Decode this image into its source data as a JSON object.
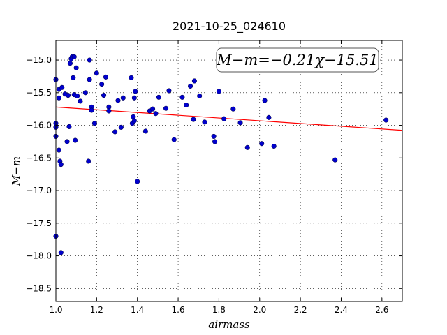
{
  "chart_data": {
    "type": "scatter",
    "title": "2021-10-25_024610",
    "xlabel": "airmass",
    "ylabel": "M−m",
    "xlim": [
      1.0,
      2.7
    ],
    "ylim": [
      -14.7,
      -18.7
    ],
    "y_inverted": true,
    "xticks": [
      1.0,
      1.2,
      1.4,
      1.6,
      1.8,
      2.0,
      2.2,
      2.4,
      2.6
    ],
    "xtick_labels": [
      "1.0",
      "1.2",
      "1.4",
      "1.6",
      "1.8",
      "2.0",
      "2.2",
      "2.4",
      "2.6"
    ],
    "yticks": [
      -15.0,
      -15.5,
      -16.0,
      -16.5,
      -17.0,
      -17.5,
      -18.0,
      -18.5
    ],
    "ytick_labels": [
      "−15.0",
      "−15.5",
      "−16.0",
      "−16.5",
      "−17.0",
      "−17.5",
      "−18.0",
      "−18.5"
    ],
    "grid": true,
    "annotation": "M−m=−0.21χ−15.51",
    "fit": {
      "slope": -0.21,
      "intercept": -15.51,
      "color": "#ff0000"
    },
    "marker_color": "#0000cc",
    "points": [
      [
        1.0,
        -15.3
      ],
      [
        1.0,
        -15.97
      ],
      [
        1.0,
        -16.03
      ],
      [
        1.0,
        -16.17
      ],
      [
        1.0,
        -17.7
      ],
      [
        1.015,
        -15.45
      ],
      [
        1.015,
        -15.58
      ],
      [
        1.015,
        -16.38
      ],
      [
        1.02,
        -16.55
      ],
      [
        1.025,
        -16.6
      ],
      [
        1.025,
        -17.95
      ],
      [
        1.03,
        -15.42
      ],
      [
        1.045,
        -15.52
      ],
      [
        1.055,
        -16.25
      ],
      [
        1.06,
        -15.54
      ],
      [
        1.065,
        -16.02
      ],
      [
        1.07,
        -15.05
      ],
      [
        1.075,
        -14.98
      ],
      [
        1.08,
        -14.95
      ],
      [
        1.09,
        -14.95
      ],
      [
        1.085,
        -15.27
      ],
      [
        1.09,
        -15.53
      ],
      [
        1.095,
        -16.23
      ],
      [
        1.1,
        -15.12
      ],
      [
        1.105,
        -15.55
      ],
      [
        1.12,
        -15.63
      ],
      [
        1.145,
        -15.5
      ],
      [
        1.16,
        -16.55
      ],
      [
        1.165,
        -15.0
      ],
      [
        1.165,
        -15.3
      ],
      [
        1.175,
        -15.72
      ],
      [
        1.175,
        -15.77
      ],
      [
        1.19,
        -15.97
      ],
      [
        1.2,
        -15.2
      ],
      [
        1.225,
        -15.37
      ],
      [
        1.235,
        -15.54
      ],
      [
        1.245,
        -15.26
      ],
      [
        1.26,
        -15.72
      ],
      [
        1.26,
        -15.78
      ],
      [
        1.29,
        -16.1
      ],
      [
        1.305,
        -15.62
      ],
      [
        1.32,
        -16.03
      ],
      [
        1.33,
        -15.58
      ],
      [
        1.37,
        -15.27
      ],
      [
        1.375,
        -15.97
      ],
      [
        1.38,
        -15.87
      ],
      [
        1.385,
        -15.58
      ],
      [
        1.385,
        -15.93
      ],
      [
        1.39,
        -15.48
      ],
      [
        1.4,
        -16.86
      ],
      [
        1.44,
        -16.09
      ],
      [
        1.46,
        -15.78
      ],
      [
        1.475,
        -15.75
      ],
      [
        1.49,
        -15.82
      ],
      [
        1.505,
        -15.57
      ],
      [
        1.54,
        -15.74
      ],
      [
        1.555,
        -15.47
      ],
      [
        1.58,
        -16.22
      ],
      [
        1.62,
        -15.57
      ],
      [
        1.64,
        -15.69
      ],
      [
        1.66,
        -15.4
      ],
      [
        1.675,
        -15.91
      ],
      [
        1.68,
        -15.32
      ],
      [
        1.705,
        -15.55
      ],
      [
        1.73,
        -15.95
      ],
      [
        1.775,
        -16.17
      ],
      [
        1.78,
        -16.25
      ],
      [
        1.8,
        -15.48
      ],
      [
        1.825,
        -15.9
      ],
      [
        1.87,
        -15.75
      ],
      [
        1.905,
        -15.96
      ],
      [
        1.94,
        -16.34
      ],
      [
        2.01,
        -16.28
      ],
      [
        2.025,
        -15.62
      ],
      [
        2.045,
        -15.88
      ],
      [
        2.07,
        -16.32
      ],
      [
        2.37,
        -16.53
      ],
      [
        2.62,
        -15.92
      ]
    ]
  }
}
